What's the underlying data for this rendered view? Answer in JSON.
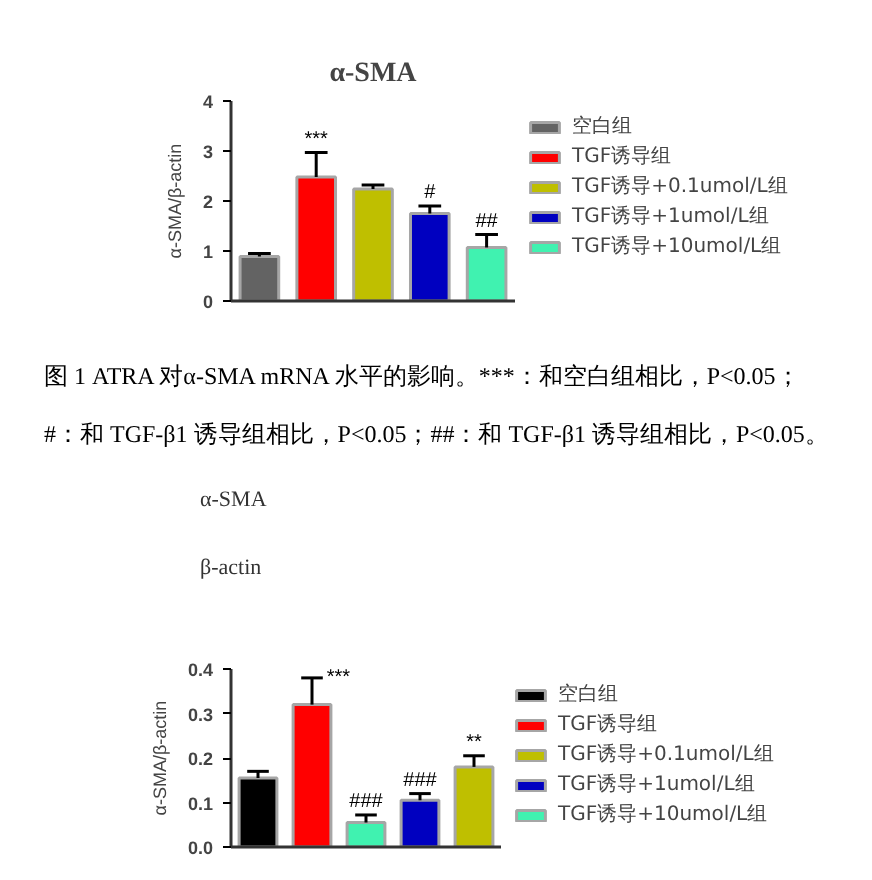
{
  "chart_data": [
    {
      "type": "bar",
      "title": "α-SMA",
      "ylabel": "α-SMA/β-actin",
      "categories": [
        null,
        null,
        null,
        null,
        null
      ],
      "stacked": true,
      "series": [
        {
          "name": "空白组",
          "color": "#636363",
          "values": [
            0.89,
            null,
            null,
            null,
            null
          ],
          "errors": [
            [
              0.89,
              0.95
            ],
            null,
            null,
            null,
            null
          ]
        },
        {
          "name": "TGF诱导组",
          "color": "#ff0000",
          "values": [
            null,
            2.48,
            null,
            null,
            null
          ],
          "errors": [
            null,
            [
              2.48,
              2.97
            ],
            null,
            null,
            null
          ],
          "value_labels": [
            null,
            "***",
            null,
            null,
            null
          ]
        },
        {
          "name": "TGF诱导+0.1umol/L组",
          "color": "#bfbf00",
          "values": [
            null,
            null,
            2.24,
            null,
            null
          ],
          "errors": [
            null,
            null,
            [
              2.24,
              2.32
            ],
            null,
            null
          ]
        },
        {
          "name": "TGF诱导+1umol/L组",
          "color": "#0000c0",
          "values": [
            null,
            null,
            null,
            1.75,
            null
          ],
          "errors": [
            null,
            null,
            null,
            [
              1.75,
              1.9
            ],
            null
          ],
          "value_labels": [
            null,
            null,
            null,
            "#",
            null
          ]
        },
        {
          "name": "TGF诱导+10umol/L组",
          "color": "#40f2b0",
          "values": [
            null,
            null,
            null,
            null,
            1.07
          ],
          "errors": [
            null,
            null,
            null,
            null,
            [
              1.07,
              1.33
            ]
          ],
          "value_labels": [
            null,
            null,
            null,
            null,
            "##"
          ]
        }
      ],
      "ylim": [
        0,
        4
      ],
      "yticks": [
        0,
        1,
        2,
        3,
        4
      ],
      "tick_labels": "y",
      "legend": "top right"
    },
    {
      "type": "other",
      "annotations": [
        "图 1 ATRA 对α-SMA mRNA 水平的影响。***：和空白组相比，P<0.05；",
        "#：和 TGF-β1 诱导组相比，P<0.05；##：和 TGF-β1 诱导组相比，P<0.05。",
        "α-SMA",
        "β-actin"
      ]
    },
    {
      "type": "bar",
      "ylabel": "α-SMA/β-actin",
      "categories": [
        null,
        null,
        null,
        null,
        null
      ],
      "stacked": true,
      "series": [
        {
          "name": "空白组",
          "color": "#000000",
          "values": [
            0.155,
            null,
            null,
            null,
            null
          ],
          "errors": [
            [
              0.155,
              0.17
            ],
            null,
            null,
            null,
            null
          ]
        },
        {
          "name": "TGF诱导组",
          "color": "#ff0000",
          "values": [
            null,
            0.32,
            null,
            null,
            null
          ],
          "errors": [
            null,
            [
              0.32,
              0.38
            ],
            null,
            null,
            null
          ],
          "value_labels": [
            null,
            "***",
            null,
            null,
            null
          ]
        },
        {
          "name": "TGF诱导+0.1umol/L组",
          "color": "#bfbf00",
          "values": [
            null,
            null,
            null,
            null,
            0.18
          ],
          "errors": [
            null,
            null,
            null,
            null,
            [
              0.18,
              0.205
            ]
          ],
          "value_labels": [
            null,
            null,
            null,
            null,
            "**"
          ]
        },
        {
          "name": "TGF诱导+1umol/L组",
          "color": "#0000c0",
          "values": [
            null,
            null,
            null,
            0.105,
            null
          ],
          "errors": [
            null,
            null,
            null,
            [
              0.105,
              0.12
            ],
            null
          ],
          "value_labels": [
            null,
            null,
            null,
            "###",
            null
          ]
        },
        {
          "name": "TGF诱导+10umol/L组",
          "color": "#40f2b0",
          "values": [
            null,
            null,
            0.055,
            null,
            null
          ],
          "errors": [
            null,
            null,
            [
              0.055,
              0.072
            ],
            null,
            null
          ],
          "value_labels": [
            null,
            null,
            "###",
            null,
            null
          ]
        }
      ],
      "ylim": [
        0,
        0.4
      ],
      "yticks": [
        {
          "value": 0,
          "label": "0.0"
        },
        0.1,
        0.2,
        0.3,
        0.4
      ],
      "tick_labels": "y",
      "legend": "top right"
    }
  ]
}
